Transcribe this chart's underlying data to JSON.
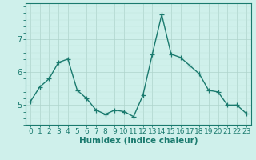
{
  "x": [
    0,
    1,
    2,
    3,
    4,
    5,
    6,
    7,
    8,
    9,
    10,
    11,
    12,
    13,
    14,
    15,
    16,
    17,
    18,
    19,
    20,
    21,
    22,
    23
  ],
  "y": [
    5.1,
    5.55,
    5.8,
    6.3,
    6.4,
    5.45,
    5.2,
    4.85,
    4.72,
    4.85,
    4.8,
    4.65,
    5.3,
    6.55,
    7.75,
    6.55,
    6.45,
    6.2,
    5.95,
    5.45,
    5.4,
    5.0,
    5.0,
    4.75
  ],
  "line_color": "#1a7a6e",
  "marker": "+",
  "marker_size": 4,
  "bg_color": "#cff0eb",
  "grid_color_major": "#aed4cc",
  "grid_color_minor": "#bfe3dc",
  "xlabel": "Humidex (Indice chaleur)",
  "yticks": [
    5,
    6,
    7
  ],
  "ylim": [
    4.4,
    8.1
  ],
  "xlim": [
    -0.5,
    23.5
  ],
  "xlabel_fontsize": 7.5,
  "tick_fontsize": 6.5,
  "axis_color": "#1a7a6e",
  "line_width": 1.0
}
